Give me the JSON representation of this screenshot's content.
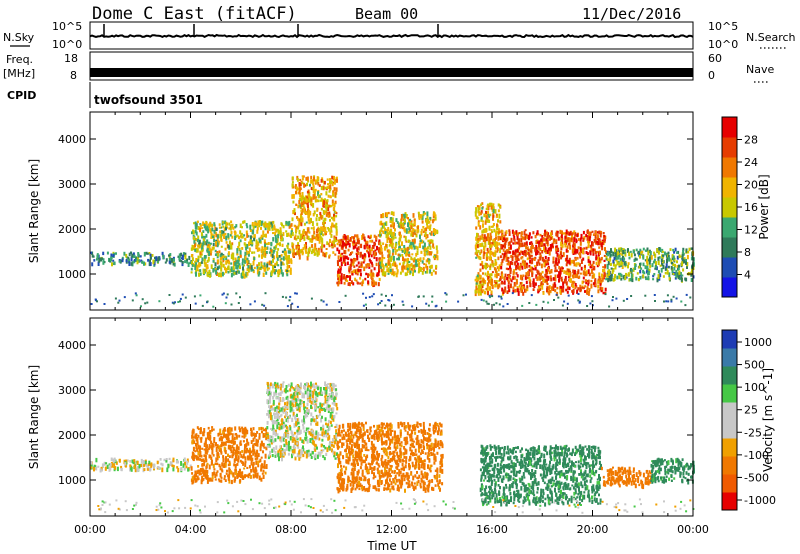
{
  "header": {
    "station": "Dome C East (fitACF)",
    "beam": "Beam 00",
    "date": "11/Dec/2016"
  },
  "side_labels": {
    "nsky": "N.Sky",
    "nsky_scale_top": "10^5",
    "nsky_scale_bottom": "10^0",
    "freq_line1": "Freq.",
    "freq_line2": "[MHz]",
    "freq_top": "18",
    "freq_bottom": "8",
    "cpid": "CPID",
    "cpid_value": "twofsound 3501",
    "nsearch": "N.Search",
    "nsearch_scale_top": "10^5",
    "nsearch_scale_bottom": "10^0",
    "nave": "Nave",
    "nave_top": "60",
    "nave_bottom": "0"
  },
  "colors": {
    "power_scale": [
      "#1414e6",
      "#1e4db4",
      "#2f7a5a",
      "#3aa870",
      "#c8c800",
      "#f0b400",
      "#f07800",
      "#e63c00",
      "#e60000"
    ],
    "velocity_scale": [
      "#e60000",
      "#f05a00",
      "#f07800",
      "#f0a000",
      "#c8c8c8",
      "#c8c8c8",
      "#46c846",
      "#2f8a5a",
      "#3a7aa8",
      "#1e3cb4"
    ],
    "ground_scatter": "#9a9a9a"
  },
  "chart_data": [
    {
      "type": "heatmap",
      "title": "",
      "xlabel": "",
      "ylabel": "Slant Range [km]",
      "xlim": [
        0,
        24
      ],
      "ylim": [
        200,
        4600
      ],
      "y_ticks": [
        "1000",
        "2000",
        "3000",
        "4000"
      ],
      "colorbar": {
        "label": "Power [dB]",
        "range": [
          0,
          32
        ],
        "ticks": [
          "4",
          "8",
          "12",
          "16",
          "20",
          "24",
          "28"
        ]
      },
      "echo_regions": [
        {
          "t_start": 0.0,
          "t_end": 4.0,
          "range_min": 1250,
          "range_max": 1500,
          "power_db": 10
        },
        {
          "t_start": 4.0,
          "t_end": 8.0,
          "range_min": 1000,
          "range_max": 2200,
          "power_db": 16
        },
        {
          "t_start": 8.0,
          "t_end": 9.8,
          "range_min": 1400,
          "range_max": 3200,
          "power_db": 20
        },
        {
          "t_start": 9.8,
          "t_end": 11.5,
          "range_min": 800,
          "range_max": 1900,
          "power_db": 26
        },
        {
          "t_start": 11.5,
          "t_end": 13.8,
          "range_min": 1000,
          "range_max": 2400,
          "power_db": 18
        },
        {
          "t_start": 15.3,
          "t_end": 16.3,
          "range_min": 600,
          "range_max": 2600,
          "power_db": 20
        },
        {
          "t_start": 16.3,
          "t_end": 20.5,
          "range_min": 600,
          "range_max": 2000,
          "power_db": 26
        },
        {
          "t_start": 20.5,
          "t_end": 24.0,
          "range_min": 900,
          "range_max": 1600,
          "power_db": 12
        }
      ]
    },
    {
      "type": "heatmap",
      "title": "",
      "xlabel": "Time UT",
      "ylabel": "Slant Range [km]",
      "xlim": [
        0,
        24
      ],
      "ylim": [
        200,
        4600
      ],
      "x_ticks": [
        "00:00",
        "04:00",
        "08:00",
        "12:00",
        "16:00",
        "20:00",
        "00:00"
      ],
      "y_ticks": [
        "1000",
        "2000",
        "3000",
        "4000"
      ],
      "colorbar": {
        "label": "Velocity [m s^-1]",
        "ticks": [
          "1000",
          "500",
          "100",
          "25",
          "-25",
          "-100",
          "-500",
          "-1000"
        ]
      },
      "echo_regions": [
        {
          "t_start": 0.0,
          "t_end": 4.0,
          "range_min": 1250,
          "range_max": 1500,
          "velocity": 0
        },
        {
          "t_start": 4.0,
          "t_end": 7.0,
          "range_min": 1000,
          "range_max": 2200,
          "velocity": -150
        },
        {
          "t_start": 7.0,
          "t_end": 9.8,
          "range_min": 1500,
          "range_max": 3200,
          "velocity": 0
        },
        {
          "t_start": 9.8,
          "t_end": 14.0,
          "range_min": 800,
          "range_max": 2300,
          "velocity": -150
        },
        {
          "t_start": 15.5,
          "t_end": 20.3,
          "range_min": 500,
          "range_max": 1800,
          "velocity": 150
        },
        {
          "t_start": 20.3,
          "t_end": 22.3,
          "range_min": 900,
          "range_max": 1300,
          "velocity": -300
        },
        {
          "t_start": 22.3,
          "t_end": 24.0,
          "range_min": 1000,
          "range_max": 1500,
          "velocity": 150
        }
      ]
    }
  ],
  "footer": {
    "x_axis_title": "Time UT"
  }
}
